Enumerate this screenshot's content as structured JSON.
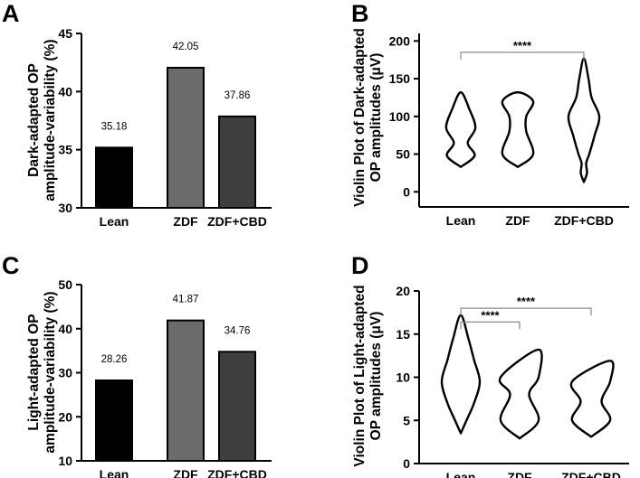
{
  "chart_data": [
    {
      "panel": "A",
      "type": "bar",
      "ylabel_lines": [
        "Dark-adapted OP",
        "amplitude-variability (%)"
      ],
      "categories": [
        "Lean",
        "ZDF",
        "ZDF+CBD"
      ],
      "values": [
        35.18,
        42.05,
        37.86
      ],
      "data_labels": [
        "35.18",
        "42.05",
        "37.86"
      ],
      "bar_colors": [
        "#000000",
        "#6b6b6b",
        "#3f3f3f"
      ],
      "ylim": [
        30,
        45
      ],
      "yticks": [
        30,
        35,
        40,
        45
      ]
    },
    {
      "panel": "B",
      "type": "violin",
      "ylabel_lines": [
        "Violin Plot of Dark-adapted",
        "OP amplitudes (μV)"
      ],
      "categories": [
        "Lean",
        "ZDF",
        "ZDF+CBD"
      ],
      "ylim": [
        -20,
        210
      ],
      "yticks": [
        0,
        50,
        100,
        150,
        200
      ],
      "violins": [
        {
          "y": [
            33,
            48,
            65,
            85,
            110,
            132
          ],
          "w": [
            0.0,
            0.9,
            0.45,
            0.95,
            0.55,
            0.0
          ]
        },
        {
          "y": [
            33,
            50,
            80,
            100,
            120,
            132
          ],
          "w": [
            0.0,
            1.0,
            0.55,
            0.55,
            1.0,
            0.0
          ]
        },
        {
          "y": [
            13,
            25,
            38,
            50,
            75,
            100,
            125,
            150,
            177
          ],
          "w": [
            0.0,
            0.2,
            0.15,
            0.35,
            0.7,
            1.0,
            0.5,
            0.3,
            0.0
          ]
        }
      ],
      "brackets": [
        {
          "from": 0,
          "to": 2,
          "label": "****",
          "y": 185
        }
      ]
    },
    {
      "panel": "C",
      "type": "bar",
      "ylabel_lines": [
        "Light-adapted OP",
        "amplitude-variability (%)"
      ],
      "categories": [
        "Lean",
        "ZDF",
        "ZDF+CBD"
      ],
      "values": [
        28.26,
        41.87,
        34.76
      ],
      "data_labels": [
        "28.26",
        "41.87",
        "34.76"
      ],
      "bar_colors": [
        "#000000",
        "#6b6b6b",
        "#3f3f3f"
      ],
      "ylim": [
        10,
        50
      ],
      "yticks": [
        10,
        20,
        30,
        40,
        50
      ]
    },
    {
      "panel": "D",
      "type": "violin",
      "ylabel_lines": [
        "Violin Plot of Light-adapted",
        "OP amplitudes (μV)"
      ],
      "categories": [
        "Lean",
        "ZDF",
        "ZDF+CBD"
      ],
      "ylim": [
        0,
        20
      ],
      "yticks": [
        0,
        5,
        10,
        15,
        20
      ],
      "violins": [
        {
          "y": [
            3.5,
            5,
            7,
            9.5,
            12,
            14.5,
            17.2
          ],
          "w": [
            0.0,
            0.3,
            0.7,
            1.0,
            0.7,
            0.4,
            0.0
          ]
        },
        {
          "y": [
            2.9,
            5,
            8,
            10,
            13.2
          ],
          "w": [
            0.0,
            1.0,
            0.5,
            1.0,
            1.0
          ]
        },
        {
          "y": [
            3.1,
            5,
            7.2,
            9.5,
            11.9
          ],
          "w": [
            0.0,
            1.0,
            0.55,
            1.0,
            1.0
          ]
        }
      ],
      "brackets": [
        {
          "from": 0,
          "to": 1,
          "label": "****",
          "y": 16.4
        },
        {
          "from": 0,
          "to": 2,
          "label": "****",
          "y": 18.0
        }
      ]
    }
  ]
}
